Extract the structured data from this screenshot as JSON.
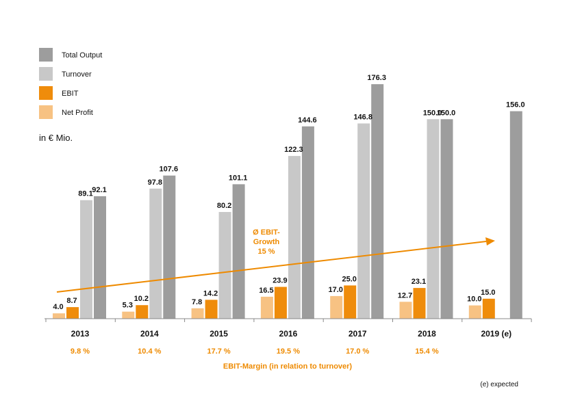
{
  "unit_label": "in € Mio.",
  "footnote": "(e) expected",
  "growth_annotation": [
    "Ø EBIT-",
    "Growth",
    "15 %"
  ],
  "margin_caption": "EBIT-Margin (in relation to turnover)",
  "colors": {
    "total_output": "#9d9d9d",
    "turnover": "#c8c8c8",
    "ebit": "#ef8c0b",
    "net_profit": "#f7c283",
    "accent": "#ee8a00",
    "axis": "#888888"
  },
  "chart_data": {
    "type": "bar",
    "categories": [
      "2013",
      "2014",
      "2015",
      "2016",
      "2017",
      "2018",
      "2019 (e)"
    ],
    "series": [
      {
        "name": "Total Output",
        "key": "total_output",
        "values": [
          92.1,
          107.6,
          101.1,
          144.6,
          176.3,
          150.0,
          156.0
        ]
      },
      {
        "name": "Turnover",
        "key": "turnover",
        "values": [
          89.1,
          97.8,
          80.2,
          122.3,
          146.8,
          150.0,
          null
        ]
      },
      {
        "name": "EBIT",
        "key": "ebit",
        "values": [
          8.7,
          10.2,
          14.2,
          23.9,
          25.0,
          23.1,
          15.0
        ]
      },
      {
        "name": "Net Profit",
        "key": "net_profit",
        "values": [
          4.0,
          5.3,
          7.8,
          16.5,
          17.0,
          12.7,
          10.0
        ]
      }
    ],
    "value_labels": {
      "total_output": [
        "92.1",
        "107.6",
        "101.1",
        "144.6",
        "176.3",
        "150.0",
        "156.0"
      ],
      "turnover": [
        "89.1",
        "97.8",
        "80.2",
        "122.3",
        "146.8",
        "150.0",
        ""
      ],
      "ebit": [
        "8.7",
        "10.2",
        "14.2",
        "23.9",
        "25.0",
        "23.1",
        "15.0"
      ],
      "net_profit": [
        "4.0",
        "5.3",
        "7.8",
        "16.5",
        "17.0",
        "12.7",
        "10.0"
      ]
    },
    "ebit_margin": [
      "9.8 %",
      "10.4 %",
      "17.7 %",
      "19.5 %",
      "17.0 %",
      "15.4 %",
      ""
    ],
    "ylim": [
      0,
      190
    ],
    "legend": [
      "Total Output",
      "Turnover",
      "EBIT",
      "Net Profit"
    ],
    "legend_position": "top-left",
    "grid": false
  }
}
